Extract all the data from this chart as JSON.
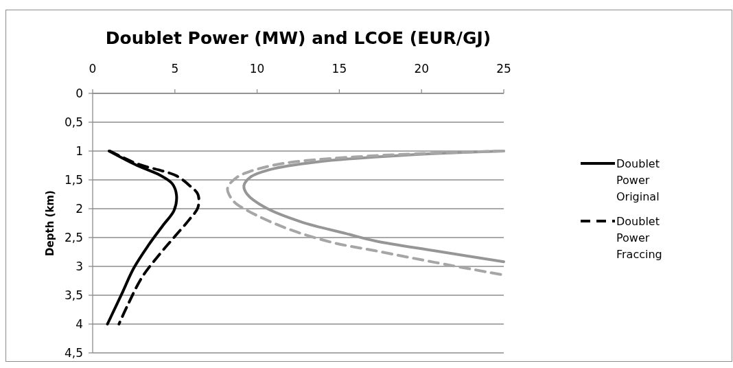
{
  "chart_data": {
    "type": "line",
    "title": "Doublet Power (MW) and LCOE (EUR/GJ)",
    "ylabel": "Depth (km)",
    "xlim": [
      0,
      25
    ],
    "xticks": [
      0,
      5,
      10,
      15,
      20,
      25
    ],
    "ylim": [
      4.5,
      0
    ],
    "yticks": [
      0,
      {
        "value": 0.5,
        "label": "0,5"
      },
      1,
      {
        "value": 1.5,
        "label": "1,5"
      },
      2,
      {
        "value": 2.5,
        "label": "2,5"
      },
      3,
      {
        "value": 3.5,
        "label": "3,5"
      },
      4,
      {
        "value": 4.5,
        "label": "4,5"
      }
    ],
    "grid": "y",
    "legend": "right",
    "marker": "none",
    "series": [
      {
        "name": "Doublet Power Original",
        "color": "#000000",
        "line_style": "solid",
        "x": [
          1.0,
          2.7,
          4.1,
          4.85,
          5.1,
          4.95,
          4.3,
          3.4,
          2.5,
          1.75,
          0.9
        ],
        "values": [
          1.0,
          1.25,
          1.42,
          1.57,
          1.77,
          2.03,
          2.28,
          2.63,
          3.03,
          3.49,
          4.0
        ]
      },
      {
        "name": "Doublet Power Fraccing",
        "color": "#000000",
        "line_style": "dashed",
        "x": [
          1.05,
          2.7,
          4.3,
          5.1,
          5.9,
          6.4,
          6.4,
          5.9,
          5.0,
          4.1,
          3.0,
          2.1,
          1.6
        ],
        "values": [
          1.0,
          1.22,
          1.35,
          1.43,
          1.6,
          1.75,
          1.98,
          2.18,
          2.48,
          2.78,
          3.19,
          3.69,
          4.0
        ]
      },
      {
        "color": "#969696",
        "line_style": "solid",
        "x": [
          25,
          19,
          13.6,
          10.8,
          9.6,
          9.2,
          9.4,
          10.5,
          12.7,
          15.4,
          17.2,
          20.8,
          25
        ],
        "values": [
          1.0,
          1.07,
          1.19,
          1.32,
          1.45,
          1.6,
          1.75,
          1.98,
          2.23,
          2.43,
          2.56,
          2.73,
          2.92
        ]
      },
      {
        "color": "#a6a6a6",
        "line_style": "dashed",
        "x": [
          25,
          17.2,
          11.7,
          9.6,
          8.7,
          8.2,
          8.6,
          9.4,
          11.7,
          14.5,
          17.2,
          20.8,
          25
        ],
        "values": [
          1.0,
          1.08,
          1.21,
          1.35,
          1.47,
          1.65,
          1.88,
          2.03,
          2.33,
          2.58,
          2.73,
          2.93,
          3.15
        ]
      }
    ]
  }
}
